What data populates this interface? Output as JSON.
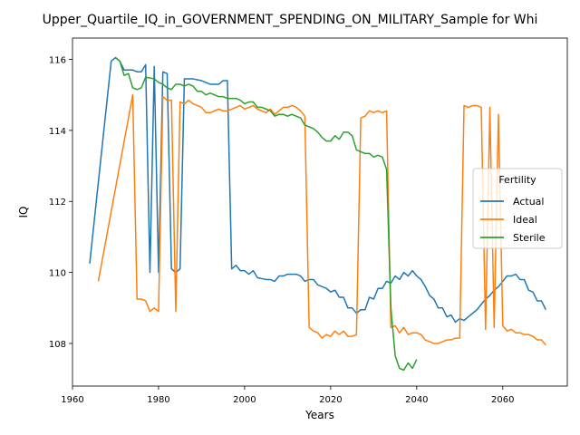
{
  "chart_data": {
    "type": "line",
    "title": "Upper_Quartile_IQ_in_GOVERNMENT_SPENDING_ON_MILITARY_Sample for Whi",
    "xlabel": "Years",
    "ylabel": "IQ",
    "xlim": [
      1960,
      2075
    ],
    "ylim": [
      106.8,
      116.6
    ],
    "xticks": [
      1960,
      1980,
      2000,
      2020,
      2040,
      2060
    ],
    "yticks": [
      108,
      110,
      112,
      114,
      116
    ],
    "grid": false,
    "legend": {
      "title": "Fertility",
      "placement": "center-right"
    },
    "series": [
      {
        "name": "Actual",
        "color": "#1f77b4",
        "points": [
          [
            1964,
            110.25
          ],
          [
            1969,
            115.95
          ],
          [
            1970,
            116.05
          ],
          [
            1971,
            115.95
          ],
          [
            1972,
            115.7
          ],
          [
            1974,
            115.7
          ],
          [
            1975,
            115.65
          ],
          [
            1976,
            115.65
          ],
          [
            1977,
            115.85
          ],
          [
            1978,
            110.0
          ],
          [
            1979,
            115.8
          ],
          [
            1980,
            110.0
          ],
          [
            1981,
            115.65
          ],
          [
            1982,
            115.6
          ],
          [
            1983,
            110.1
          ],
          [
            1984,
            110.0
          ],
          [
            1985,
            110.1
          ],
          [
            1986,
            115.45
          ],
          [
            1988,
            115.45
          ],
          [
            1990,
            115.4
          ],
          [
            1992,
            115.3
          ],
          [
            1994,
            115.3
          ],
          [
            1995,
            115.4
          ],
          [
            1996,
            115.4
          ],
          [
            1997,
            110.1
          ],
          [
            1998,
            110.2
          ],
          [
            1999,
            110.05
          ],
          [
            2000,
            110.05
          ],
          [
            2001,
            109.95
          ],
          [
            2002,
            110.05
          ],
          [
            2003,
            109.85
          ],
          [
            2005,
            109.8
          ],
          [
            2006,
            109.8
          ],
          [
            2007,
            109.75
          ],
          [
            2008,
            109.9
          ],
          [
            2009,
            109.9
          ],
          [
            2010,
            109.95
          ],
          [
            2012,
            109.95
          ],
          [
            2013,
            109.9
          ],
          [
            2014,
            109.75
          ],
          [
            2015,
            109.8
          ],
          [
            2016,
            109.8
          ],
          [
            2017,
            109.65
          ],
          [
            2018,
            109.6
          ],
          [
            2019,
            109.55
          ],
          [
            2020,
            109.45
          ],
          [
            2021,
            109.5
          ],
          [
            2022,
            109.3
          ],
          [
            2023,
            109.3
          ],
          [
            2024,
            109.0
          ],
          [
            2025,
            109.0
          ],
          [
            2026,
            108.85
          ],
          [
            2027,
            108.95
          ],
          [
            2028,
            108.95
          ],
          [
            2029,
            109.3
          ],
          [
            2030,
            109.25
          ],
          [
            2031,
            109.55
          ],
          [
            2032,
            109.55
          ],
          [
            2033,
            109.75
          ],
          [
            2034,
            109.7
          ],
          [
            2035,
            109.9
          ],
          [
            2036,
            109.8
          ],
          [
            2037,
            110.0
          ],
          [
            2038,
            109.9
          ],
          [
            2039,
            110.05
          ],
          [
            2040,
            109.9
          ],
          [
            2041,
            109.8
          ],
          [
            2042,
            109.6
          ],
          [
            2043,
            109.35
          ],
          [
            2044,
            109.25
          ],
          [
            2045,
            109.0
          ],
          [
            2046,
            109.0
          ],
          [
            2047,
            108.75
          ],
          [
            2048,
            108.8
          ],
          [
            2049,
            108.6
          ],
          [
            2050,
            108.7
          ],
          [
            2051,
            108.65
          ],
          [
            2052,
            108.75
          ],
          [
            2053,
            108.85
          ],
          [
            2054,
            108.95
          ],
          [
            2055,
            109.1
          ],
          [
            2056,
            109.25
          ],
          [
            2057,
            109.35
          ],
          [
            2058,
            109.5
          ],
          [
            2059,
            109.6
          ],
          [
            2060,
            109.75
          ],
          [
            2061,
            109.9
          ],
          [
            2062,
            109.9
          ],
          [
            2063,
            109.95
          ],
          [
            2064,
            109.8
          ],
          [
            2065,
            109.8
          ],
          [
            2066,
            109.5
          ],
          [
            2067,
            109.45
          ],
          [
            2068,
            109.2
          ],
          [
            2069,
            109.2
          ],
          [
            2070,
            108.95
          ]
        ]
      },
      {
        "name": "Ideal",
        "color": "#ff7f0e",
        "points": [
          [
            1966,
            109.75
          ],
          [
            1974,
            115.0
          ],
          [
            1975,
            109.25
          ],
          [
            1976,
            109.25
          ],
          [
            1977,
            109.2
          ],
          [
            1978,
            108.9
          ],
          [
            1979,
            109.0
          ],
          [
            1980,
            108.9
          ],
          [
            1981,
            114.95
          ],
          [
            1982,
            114.85
          ],
          [
            1983,
            114.85
          ],
          [
            1984,
            108.9
          ],
          [
            1985,
            114.8
          ],
          [
            1986,
            114.75
          ],
          [
            1987,
            114.85
          ],
          [
            1988,
            114.75
          ],
          [
            1990,
            114.65
          ],
          [
            1991,
            114.5
          ],
          [
            1992,
            114.5
          ],
          [
            1994,
            114.6
          ],
          [
            1995,
            114.55
          ],
          [
            1996,
            114.55
          ],
          [
            1998,
            114.65
          ],
          [
            1999,
            114.7
          ],
          [
            2000,
            114.6
          ],
          [
            2001,
            114.65
          ],
          [
            2002,
            114.7
          ],
          [
            2003,
            114.6
          ],
          [
            2004,
            114.55
          ],
          [
            2005,
            114.5
          ],
          [
            2006,
            114.6
          ],
          [
            2007,
            114.45
          ],
          [
            2008,
            114.55
          ],
          [
            2009,
            114.65
          ],
          [
            2010,
            114.65
          ],
          [
            2011,
            114.7
          ],
          [
            2012,
            114.65
          ],
          [
            2013,
            114.55
          ],
          [
            2014,
            114.4
          ],
          [
            2015,
            108.45
          ],
          [
            2016,
            108.35
          ],
          [
            2017,
            108.3
          ],
          [
            2018,
            108.15
          ],
          [
            2019,
            108.25
          ],
          [
            2020,
            108.2
          ],
          [
            2021,
            108.35
          ],
          [
            2022,
            108.25
          ],
          [
            2023,
            108.35
          ],
          [
            2024,
            108.2
          ],
          [
            2025,
            108.2
          ],
          [
            2026,
            108.25
          ],
          [
            2027,
            114.35
          ],
          [
            2028,
            114.4
          ],
          [
            2029,
            114.55
          ],
          [
            2030,
            114.5
          ],
          [
            2031,
            114.55
          ],
          [
            2032,
            114.5
          ],
          [
            2033,
            114.55
          ],
          [
            2034,
            108.45
          ],
          [
            2035,
            108.5
          ],
          [
            2036,
            108.3
          ],
          [
            2037,
            108.45
          ],
          [
            2038,
            108.25
          ],
          [
            2039,
            108.3
          ],
          [
            2040,
            108.3
          ],
          [
            2041,
            108.25
          ],
          [
            2042,
            108.1
          ],
          [
            2043,
            108.05
          ],
          [
            2044,
            108.0
          ],
          [
            2045,
            108.0
          ],
          [
            2046,
            108.05
          ],
          [
            2047,
            108.1
          ],
          [
            2048,
            108.1
          ],
          [
            2049,
            108.15
          ],
          [
            2050,
            108.15
          ],
          [
            2051,
            114.7
          ],
          [
            2052,
            114.65
          ],
          [
            2053,
            114.7
          ],
          [
            2054,
            114.7
          ],
          [
            2055,
            114.65
          ],
          [
            2056,
            108.4
          ],
          [
            2057,
            114.65
          ],
          [
            2058,
            108.45
          ],
          [
            2059,
            114.45
          ],
          [
            2060,
            108.5
          ],
          [
            2061,
            108.35
          ],
          [
            2062,
            108.4
          ],
          [
            2063,
            108.3
          ],
          [
            2064,
            108.3
          ],
          [
            2065,
            108.25
          ],
          [
            2066,
            108.25
          ],
          [
            2067,
            108.2
          ],
          [
            2068,
            108.1
          ],
          [
            2069,
            108.1
          ],
          [
            2070,
            107.95
          ]
        ]
      },
      {
        "name": "Sterile",
        "color": "#2ca02c",
        "points": [
          [
            1970,
            116.05
          ],
          [
            1971,
            115.95
          ],
          [
            1972,
            115.55
          ],
          [
            1973,
            115.6
          ],
          [
            1974,
            115.2
          ],
          [
            1975,
            115.15
          ],
          [
            1976,
            115.2
          ],
          [
            1977,
            115.5
          ],
          [
            1979,
            115.45
          ],
          [
            1980,
            115.35
          ],
          [
            1981,
            115.3
          ],
          [
            1982,
            115.2
          ],
          [
            1983,
            115.15
          ],
          [
            1984,
            115.3
          ],
          [
            1985,
            115.3
          ],
          [
            1986,
            115.25
          ],
          [
            1987,
            115.3
          ],
          [
            1988,
            115.25
          ],
          [
            1989,
            115.1
          ],
          [
            1990,
            115.1
          ],
          [
            1991,
            115.0
          ],
          [
            1992,
            115.05
          ],
          [
            1993,
            115.0
          ],
          [
            1994,
            114.95
          ],
          [
            1995,
            114.95
          ],
          [
            1996,
            114.9
          ],
          [
            1997,
            114.9
          ],
          [
            1998,
            114.9
          ],
          [
            1999,
            114.85
          ],
          [
            2000,
            114.75
          ],
          [
            2001,
            114.8
          ],
          [
            2002,
            114.8
          ],
          [
            2003,
            114.65
          ],
          [
            2004,
            114.65
          ],
          [
            2005,
            114.6
          ],
          [
            2006,
            114.55
          ],
          [
            2007,
            114.4
          ],
          [
            2008,
            114.45
          ],
          [
            2009,
            114.45
          ],
          [
            2010,
            114.4
          ],
          [
            2011,
            114.45
          ],
          [
            2012,
            114.4
          ],
          [
            2013,
            114.35
          ],
          [
            2014,
            114.15
          ],
          [
            2015,
            114.1
          ],
          [
            2016,
            114.05
          ],
          [
            2017,
            113.95
          ],
          [
            2018,
            113.8
          ],
          [
            2019,
            113.7
          ],
          [
            2020,
            113.7
          ],
          [
            2021,
            113.85
          ],
          [
            2022,
            113.75
          ],
          [
            2023,
            113.95
          ],
          [
            2024,
            113.95
          ],
          [
            2025,
            113.85
          ],
          [
            2026,
            113.45
          ],
          [
            2027,
            113.4
          ],
          [
            2028,
            113.35
          ],
          [
            2029,
            113.35
          ],
          [
            2030,
            113.25
          ],
          [
            2031,
            113.3
          ],
          [
            2032,
            113.25
          ],
          [
            2033,
            112.9
          ],
          [
            2034,
            109.0
          ],
          [
            2035,
            107.65
          ],
          [
            2036,
            107.3
          ],
          [
            2037,
            107.25
          ],
          [
            2038,
            107.45
          ],
          [
            2039,
            107.3
          ],
          [
            2040,
            107.55
          ]
        ]
      }
    ]
  }
}
